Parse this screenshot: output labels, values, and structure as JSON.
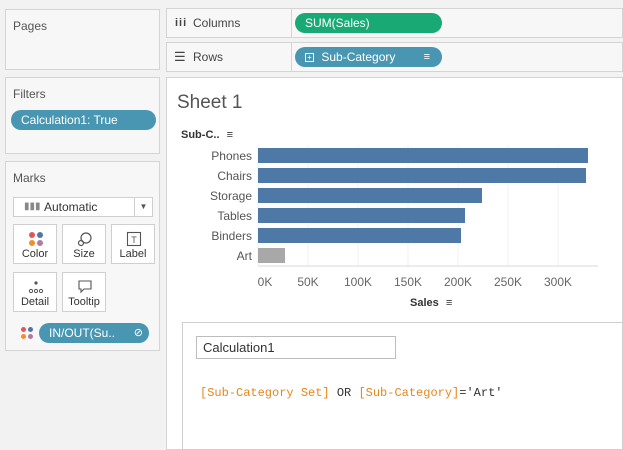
{
  "pages": {
    "title": "Pages"
  },
  "filters": {
    "title": "Filters",
    "pill": "Calculation1: True"
  },
  "marks": {
    "title": "Marks",
    "mark_type": "Automatic",
    "buttons": {
      "color": "Color",
      "size": "Size",
      "label": "Label",
      "detail": "Detail",
      "tooltip": "Tooltip"
    },
    "color_pill": "IN/OUT(Su..",
    "colors": {
      "in": "#4e79a7",
      "out": "#a8a8a8"
    }
  },
  "columns": {
    "label": "Columns",
    "pill": "SUM(Sales)"
  },
  "rows": {
    "label": "Rows",
    "pill": "Sub-Category"
  },
  "sheet": {
    "title": "Sheet 1"
  },
  "chart_data": {
    "type": "bar",
    "orientation": "horizontal",
    "y_header": "Sub-C..",
    "xlabel": "Sales",
    "categories": [
      "Phones",
      "Chairs",
      "Storage",
      "Tables",
      "Binders",
      "Art"
    ],
    "values": [
      330000,
      328000,
      224000,
      207000,
      203000,
      27000
    ],
    "in_set": [
      true,
      true,
      true,
      true,
      true,
      false
    ],
    "xlim": [
      0,
      340000
    ],
    "xticks": [
      "0K",
      "50K",
      "100K",
      "150K",
      "200K",
      "250K",
      "300K"
    ],
    "xtick_values": [
      0,
      50000,
      100000,
      150000,
      200000,
      250000,
      300000
    ]
  },
  "calc_editor": {
    "name": "Calculation1",
    "formula_parts": [
      {
        "text": "[Sub-Category Set]",
        "kind": "field"
      },
      {
        "text": " OR ",
        "kind": "keyword"
      },
      {
        "text": "[Sub-Category]",
        "kind": "field"
      },
      {
        "text": "='Art'",
        "kind": "string"
      }
    ],
    "colors": {
      "field": "#e8861a",
      "keyword": "#333333",
      "string": "#333333"
    }
  }
}
